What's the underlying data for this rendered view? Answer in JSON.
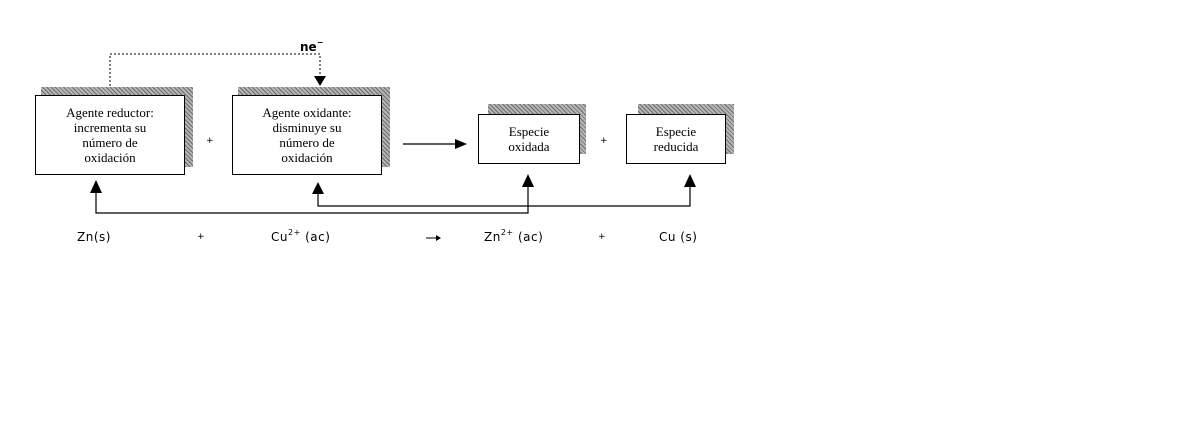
{
  "electron_transfer": {
    "label": "ne",
    "charge": "−"
  },
  "boxes": {
    "reducing_agent": "Agente reductor:\nincrementa su\nnúmero de\noxidación",
    "oxidizing_agent": "Agente oxidante:\ndisminuye su\nnúmero de\noxidación",
    "oxidized_species": "Especie\noxidada",
    "reduced_species": "Especie\nreducida"
  },
  "operators": {
    "plus": "+",
    "arrow": "→"
  },
  "equation": {
    "reactant_1": "Zn(s)",
    "reactant_2_base": "Cu",
    "reactant_2_charge": "2+",
    "reactant_2_state": " (ac)",
    "product_1_base": "Zn",
    "product_1_charge": "2+",
    "product_1_state": " (ac)",
    "product_2": "Cu  (s)"
  }
}
